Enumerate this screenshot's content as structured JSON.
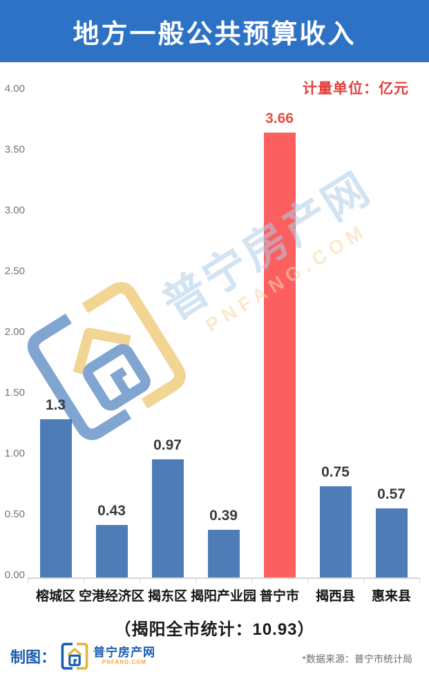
{
  "header": {
    "title": "地方一般公共预算收入"
  },
  "unit_label": "计量单位：亿元",
  "chart_data": {
    "type": "bar",
    "title": "地方一般公共预算收入",
    "unit": "亿元",
    "categories": [
      "榕城区",
      "空港经济区",
      "揭东区",
      "揭阳产业园",
      "普宁市",
      "揭西县",
      "惠来县"
    ],
    "values": [
      1.3,
      0.43,
      0.97,
      0.39,
      3.66,
      0.75,
      0.57
    ],
    "value_labels": [
      "1.3",
      "0.43",
      "0.97",
      "0.39",
      "3.66",
      "0.75",
      "0.57"
    ],
    "highlight_index": 4,
    "y_ticks": [
      "4.00",
      "3.50",
      "3.00",
      "2.50",
      "2.00",
      "1.50",
      "1.00",
      "0.50",
      "0.00"
    ],
    "ylim": [
      0,
      4
    ],
    "grid": false,
    "legend": "none",
    "bar_color": "#4e7cb7",
    "highlight_color": "#fb5f5f",
    "highlight_label_color": "#ea4b47"
  },
  "summary": "（揭阳全市统计：10.93）",
  "footer": {
    "credit_label": "制图：",
    "brand_name": "普宁房产网",
    "brand_domain": "PNFANG.COM",
    "source_note": "*数据来源：普宁市统计局"
  },
  "watermark": {
    "brand_name": "普宁房产网",
    "brand_domain": "PNFANG.COM"
  },
  "colors": {
    "banner_bg": "#2e72c6",
    "unit_text": "#e23f3a",
    "axis": "#d4d4d4",
    "brand_blue": "#1b5dad",
    "brand_orange": "#f2a73b"
  }
}
